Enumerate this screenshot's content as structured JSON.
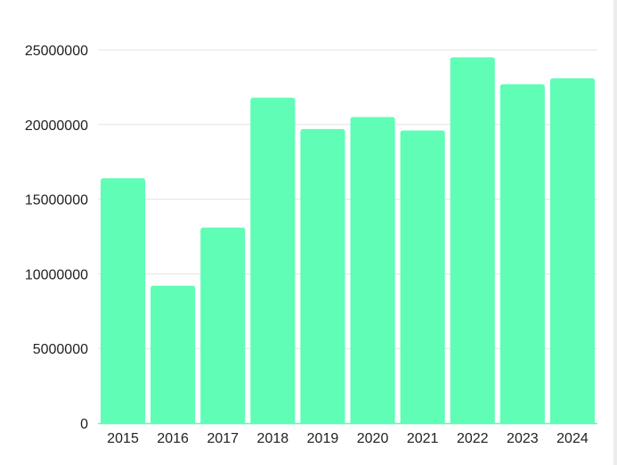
{
  "chart_data": {
    "type": "bar",
    "title": "",
    "xlabel": "",
    "ylabel": "",
    "categories": [
      "2015",
      "2016",
      "2017",
      "2018",
      "2019",
      "2020",
      "2021",
      "2022",
      "2023",
      "2024"
    ],
    "values": [
      16400000,
      9200000,
      13100000,
      21800000,
      19700000,
      20500000,
      19600000,
      24500000,
      22700000,
      23100000
    ],
    "ylim": [
      0,
      25000000
    ],
    "yticks": [
      0,
      5000000,
      10000000,
      15000000,
      20000000,
      25000000
    ],
    "ytick_labels": [
      "0",
      "5000000",
      "10000000",
      "15000000",
      "20000000",
      "25000000"
    ],
    "grid": true,
    "legend": "none",
    "bar_color": "#5ffdb5",
    "grid_color": "#e3e3e3"
  }
}
